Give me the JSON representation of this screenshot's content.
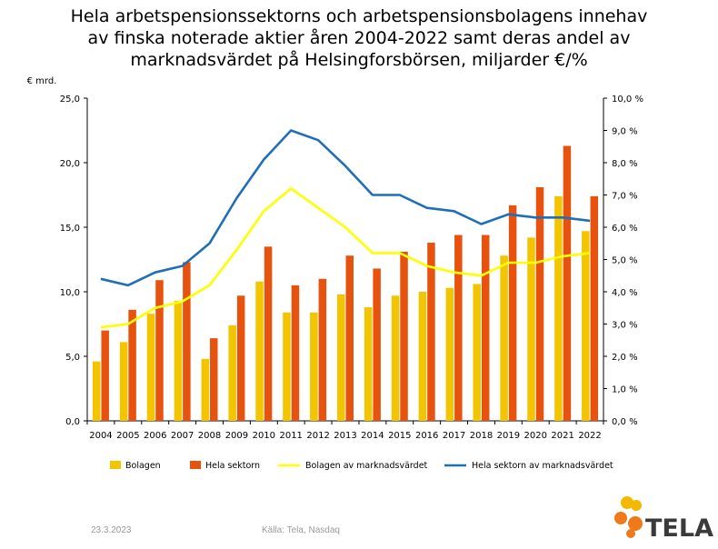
{
  "title_lines": [
    "Hela arbetspensionssektorns och arbetspensionsbolagens innehav",
    "av finska noterade aktier åren 2004-2022 samt deras andel av",
    "marknadsvärdet på Helsingforsbörsen, miljarder €/%"
  ],
  "footer": {
    "date": "23.3.2023",
    "source": "Källa: Tela, Nasdaq"
  },
  "logo": {
    "text": "TELA"
  },
  "colors": {
    "bolagen_bar": "#f2c500",
    "hela_bar": "#e8520f",
    "bolagen_line": "#ffff00",
    "hela_line": "#1f6fb8",
    "logo_orange": "#f07a1a",
    "logo_yellow": "#f5b800"
  },
  "chart_data": {
    "type": "bar",
    "title": "Hela arbetspensionssektorns och arbetspensionsbolagens innehav av finska noterade aktier åren 2004-2022 samt deras andel av marknadsvärdet på Helsingforsbörsen, miljarder €/%",
    "categories": [
      "2004",
      "2005",
      "2006",
      "2007",
      "2008",
      "2009",
      "2010",
      "2011",
      "2012",
      "2013",
      "2014",
      "2015",
      "2016",
      "2017",
      "2018",
      "2019",
      "2020",
      "2021",
      "2022"
    ],
    "ylabel": "€ mrd.",
    "ylim": [
      0,
      25
    ],
    "y_ticks": [
      "0,0",
      "5,0",
      "10,0",
      "15,0",
      "20,0",
      "25,0"
    ],
    "y2lim": [
      0,
      10
    ],
    "y2_ticks": [
      "0,0 %",
      "1,0 %",
      "2,0 %",
      "3,0 %",
      "4,0 %",
      "5,0 %",
      "6,0 %",
      "7,0 %",
      "8,0 %",
      "9,0 %",
      "10,0 %"
    ],
    "grid": false,
    "legend_position": "bottom",
    "series": [
      {
        "name": "Bolagen",
        "type": "bar",
        "axis": "left",
        "values": [
          4.6,
          6.1,
          8.3,
          9.3,
          4.8,
          7.4,
          10.8,
          8.4,
          8.4,
          9.8,
          8.8,
          9.7,
          10.0,
          10.3,
          10.6,
          12.8,
          14.2,
          17.4,
          14.7
        ]
      },
      {
        "name": "Hela sektorn",
        "type": "bar",
        "axis": "left",
        "values": [
          7.0,
          8.6,
          10.9,
          12.3,
          6.4,
          9.7,
          13.5,
          10.5,
          11.0,
          12.8,
          11.8,
          13.1,
          13.8,
          14.4,
          14.4,
          16.7,
          18.1,
          21.3,
          17.4
        ]
      },
      {
        "name": "Bolagen av marknadsvärdet",
        "type": "line",
        "axis": "right",
        "values": [
          2.9,
          3.0,
          3.5,
          3.7,
          4.2,
          5.3,
          6.5,
          7.2,
          6.6,
          6.0,
          5.2,
          5.2,
          4.8,
          4.6,
          4.5,
          4.9,
          4.9,
          5.1,
          5.2
        ]
      },
      {
        "name": "Hela sektorn av marknadsvärdet",
        "type": "line",
        "axis": "right",
        "values": [
          4.4,
          4.2,
          4.6,
          4.8,
          5.5,
          6.9,
          8.1,
          9.0,
          8.7,
          7.9,
          7.0,
          7.0,
          6.6,
          6.5,
          6.1,
          6.4,
          6.3,
          6.3,
          6.2
        ]
      }
    ]
  }
}
